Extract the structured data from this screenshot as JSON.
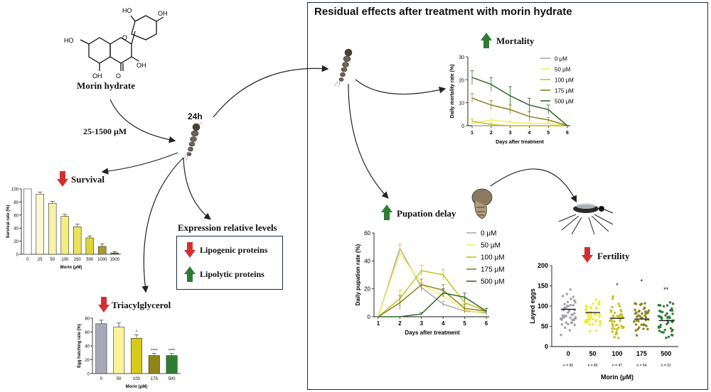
{
  "colors": {
    "green": "#2e7d32",
    "red": "#d32f2f",
    "navy": "#1f2a44",
    "arrow": "#222"
  },
  "morin": {
    "name": "Morin hydrate",
    "dose": "25-1500 μM",
    "time": "24h"
  },
  "chem_labels": {
    "ho_top": "HO",
    "oh_right": "OH",
    "ho_left": "HO",
    "oh_bottom_right": "OH",
    "oh_bottom": "OH",
    "o_ring": "O",
    "o_keto": "O"
  },
  "panel": {
    "title": "Residual effects after treatment with morin hydrate"
  },
  "labels": {
    "survival": "Survival",
    "triacylglycerol": "Triacylglycerol",
    "mortality": "Mortality",
    "pupation": "Pupation delay",
    "fertility": "Fertility",
    "expression": "Expression relative levels",
    "lipogenic": "Lipogenic proteins",
    "lipolytic": "Lipolytic proteins"
  },
  "legend_entries": [
    "0 μM",
    "50 μM",
    "100 μM",
    "175 μM",
    "500 μM"
  ],
  "legend_colors": [
    "#a9a9a9",
    "#f5ef5a",
    "#c8bf1f",
    "#8c7f1c",
    "#2e6b26"
  ],
  "chart_data": [
    {
      "id": "survival",
      "type": "bar",
      "categories": [
        "0",
        "25",
        "50",
        "100",
        "250",
        "500",
        "1000",
        "1500"
      ],
      "values": [
        100,
        92,
        78,
        58,
        42,
        25,
        12,
        2
      ],
      "errors": [
        0,
        3,
        3,
        3,
        4,
        3,
        4,
        2
      ],
      "colors": [
        "#ffffff",
        "#fafad2",
        "#f6f3a8",
        "#f3ee80",
        "#ece35c",
        "#e0d23a",
        "#a89b2a",
        "#7a6f1e"
      ],
      "ylabel": "Survival rate (%)",
      "xlabel": "Morin (μM)",
      "ylim": [
        0,
        100
      ],
      "yticks": [
        "0",
        "20",
        "40",
        "60",
        "80",
        "100"
      ]
    },
    {
      "id": "triacylglycerol",
      "type": "bar",
      "categories": [
        "0",
        "50",
        "100",
        "175",
        "500"
      ],
      "values": [
        72,
        67,
        51,
        26,
        26
      ],
      "errors": [
        5,
        6,
        5,
        3,
        3
      ],
      "significance": [
        "",
        "",
        "*",
        "****",
        "****"
      ],
      "colors": [
        "#a8a8b8",
        "#fbf29a",
        "#d6c91a",
        "#8f8418",
        "#2e7d32"
      ],
      "ylabel": "Egg hatching rate (%)",
      "xlabel": "Morin (μM)",
      "ylim": [
        0,
        80
      ],
      "yticks": [
        "0",
        "20",
        "40",
        "60",
        "80"
      ]
    },
    {
      "id": "mortality",
      "type": "line",
      "x": [
        1,
        2,
        3,
        4,
        5,
        6
      ],
      "series": [
        {
          "name": "0 μM",
          "values": [
            0,
            0,
            0,
            0,
            0,
            0
          ],
          "errors": [
            0,
            0,
            0,
            0,
            0,
            0
          ]
        },
        {
          "name": "50 μM",
          "values": [
            1,
            2.5,
            1.5,
            1,
            1,
            0
          ],
          "errors": [
            1,
            1,
            0.5,
            0.5,
            0.5,
            0
          ]
        },
        {
          "name": "100 μM",
          "values": [
            2,
            0.5,
            0,
            0,
            0,
            0
          ],
          "errors": [
            1,
            0.5,
            0,
            0,
            0,
            0
          ]
        },
        {
          "name": "175 μM",
          "values": [
            12,
            9,
            7,
            4,
            2.5,
            0
          ],
          "errors": [
            2,
            2,
            2,
            2,
            1,
            0
          ]
        },
        {
          "name": "500 μM",
          "values": [
            21,
            18,
            13,
            9,
            7,
            0
          ],
          "errors": [
            3,
            3,
            4,
            3,
            2,
            0
          ]
        }
      ],
      "xlabel": "Days after treatment",
      "ylabel": "Daily mortality rate (%)",
      "xlim": [
        1,
        6
      ],
      "ylim": [
        0,
        30
      ],
      "yticks": [
        "0",
        "10",
        "20",
        "30"
      ],
      "xticks": [
        "1",
        "2",
        "3",
        "4",
        "5",
        "6"
      ]
    },
    {
      "id": "pupation",
      "type": "line",
      "x": [
        1,
        2,
        3,
        4,
        5,
        6
      ],
      "series": [
        {
          "name": "0 μM",
          "values": [
            0,
            49,
            21,
            9,
            4,
            3
          ],
          "errors": [
            0,
            3,
            3,
            2,
            2,
            1
          ]
        },
        {
          "name": "50 μM",
          "values": [
            0,
            46,
            23,
            15,
            5,
            2
          ],
          "errors": [
            0,
            4,
            4,
            4,
            3,
            2
          ]
        },
        {
          "name": "100 μM",
          "values": [
            0,
            13,
            33,
            30,
            10,
            4
          ],
          "errors": [
            0,
            6,
            4,
            4,
            3,
            2
          ]
        },
        {
          "name": "175 μM",
          "values": [
            0,
            10,
            23,
            19,
            6,
            4
          ],
          "errors": [
            0,
            5,
            4,
            4,
            3,
            2
          ]
        },
        {
          "name": "500 μM",
          "values": [
            0,
            0,
            2,
            17,
            14,
            4
          ],
          "errors": [
            0,
            0,
            1,
            3,
            3,
            2
          ]
        }
      ],
      "xlabel": "Days after treatment",
      "ylabel": "Daily pupation rate (%)",
      "xlim": [
        1,
        6
      ],
      "ylim": [
        0,
        60
      ],
      "yticks": [
        "0",
        "20",
        "40",
        "60"
      ],
      "xticks": [
        "1",
        "2",
        "3",
        "4",
        "5",
        "6"
      ]
    },
    {
      "id": "fertility",
      "type": "scatter",
      "categories": [
        "0",
        "50",
        "100",
        "175",
        "500"
      ],
      "means": [
        92,
        84,
        70,
        68,
        64
      ],
      "spread": [
        [
          10,
          160
        ],
        [
          20,
          140
        ],
        [
          10,
          140
        ],
        [
          10,
          150
        ],
        [
          5,
          130
        ]
      ],
      "counts": [
        "n = 56",
        "n = 46",
        "n = 47",
        "n = 54",
        "n = 51"
      ],
      "significance": [
        "",
        "",
        "*",
        "*",
        "**"
      ],
      "colors": [
        "#a0a0a8",
        "#f2ea30",
        "#c9c01f",
        "#8c841a",
        "#2e7d32"
      ],
      "ylabel": "Layed eggs",
      "xlabel": "Morin (μM)",
      "ylim": [
        0,
        200
      ],
      "yticks": [
        "0",
        "50",
        "100",
        "150",
        "200"
      ]
    }
  ]
}
